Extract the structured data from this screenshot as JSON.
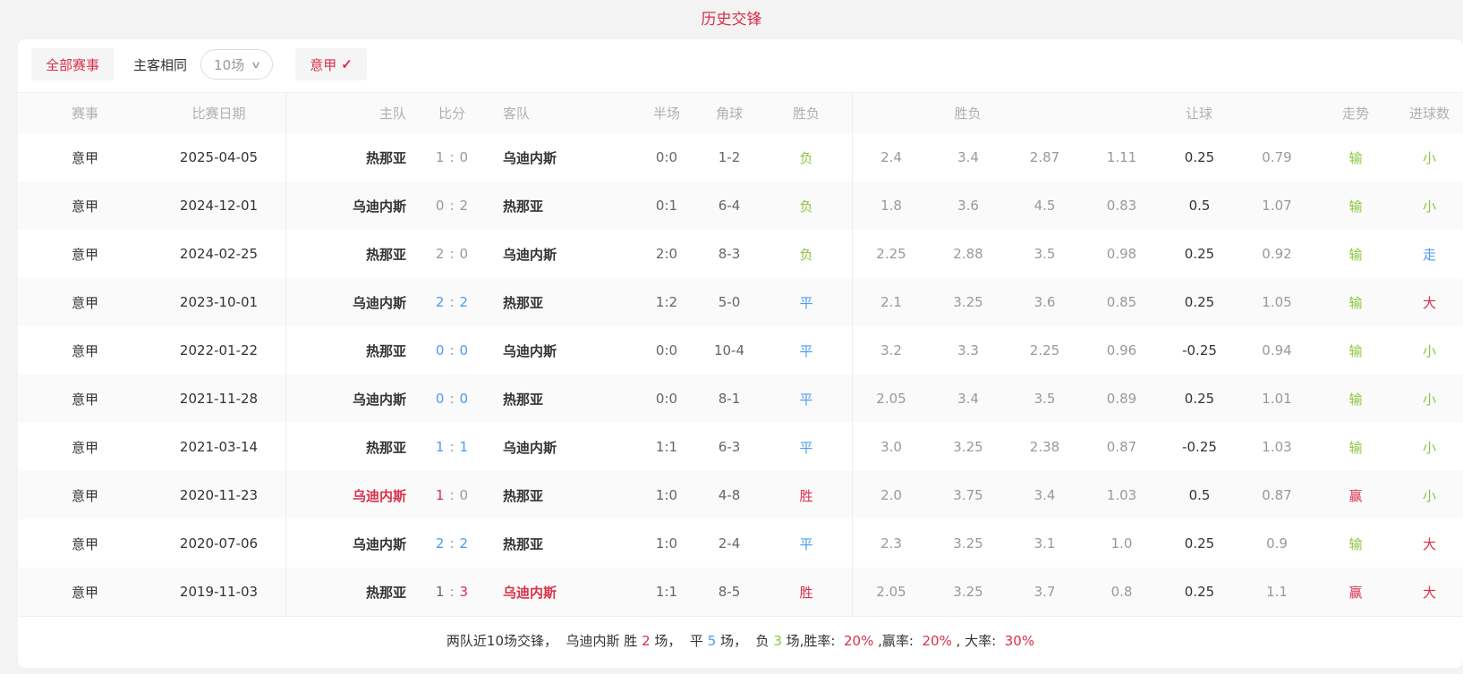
{
  "page": {
    "title": "历史交锋"
  },
  "colors": {
    "red": "#d9304c",
    "green": "#8cc63f",
    "blue": "#4a9cf2",
    "gray": "#999999",
    "dark": "#333333",
    "mid": "#666666"
  },
  "icons": {
    "chevron_down": "∨",
    "check": "✓"
  },
  "filters": {
    "all_events_label": "全部赛事",
    "home_away_label": "主客相同",
    "match_count_value": "10场",
    "league_label": "意甲"
  },
  "table": {
    "headers": {
      "league": "赛事",
      "date": "比赛日期",
      "home": "主队",
      "score": "比分",
      "away": "客队",
      "half": "半场",
      "corner": "角球",
      "result": "胜负",
      "odds_group": "胜负",
      "handicap_group": "让球",
      "trend": "走势",
      "goals": "进球数"
    },
    "score_separator": ":",
    "rows": [
      {
        "league": "意甲",
        "date": "2025-04-05",
        "home": "热那亚",
        "home_color": "dark",
        "score_home": "1",
        "score_home_color": "gray",
        "score_away": "0",
        "score_away_color": "gray",
        "away": "乌迪内斯",
        "away_color": "dark",
        "half": "0:0",
        "corner": "1-2",
        "result": "负",
        "result_color": "green",
        "odds": {
          "home": "2.4",
          "draw": "3.4",
          "away": "2.87"
        },
        "handicap": {
          "home": "1.11",
          "line": "0.25",
          "away": "0.79"
        },
        "trend": "输",
        "trend_color": "green",
        "goals": "小",
        "goals_color": "green"
      },
      {
        "league": "意甲",
        "date": "2024-12-01",
        "home": "乌迪内斯",
        "home_color": "dark",
        "score_home": "0",
        "score_home_color": "gray",
        "score_away": "2",
        "score_away_color": "gray",
        "away": "热那亚",
        "away_color": "dark",
        "half": "0:1",
        "corner": "6-4",
        "result": "负",
        "result_color": "green",
        "odds": {
          "home": "1.8",
          "draw": "3.6",
          "away": "4.5"
        },
        "handicap": {
          "home": "0.83",
          "line": "0.5",
          "away": "1.07"
        },
        "trend": "输",
        "trend_color": "green",
        "goals": "小",
        "goals_color": "green"
      },
      {
        "league": "意甲",
        "date": "2024-02-25",
        "home": "热那亚",
        "home_color": "dark",
        "score_home": "2",
        "score_home_color": "gray",
        "score_away": "0",
        "score_away_color": "gray",
        "away": "乌迪内斯",
        "away_color": "dark",
        "half": "2:0",
        "corner": "8-3",
        "result": "负",
        "result_color": "green",
        "odds": {
          "home": "2.25",
          "draw": "2.88",
          "away": "3.5"
        },
        "handicap": {
          "home": "0.98",
          "line": "0.25",
          "away": "0.92"
        },
        "trend": "输",
        "trend_color": "green",
        "goals": "走",
        "goals_color": "blue"
      },
      {
        "league": "意甲",
        "date": "2023-10-01",
        "home": "乌迪内斯",
        "home_color": "dark",
        "score_home": "2",
        "score_home_color": "blue",
        "score_away": "2",
        "score_away_color": "blue",
        "away": "热那亚",
        "away_color": "dark",
        "half": "1:2",
        "corner": "5-0",
        "result": "平",
        "result_color": "blue",
        "odds": {
          "home": "2.1",
          "draw": "3.25",
          "away": "3.6"
        },
        "handicap": {
          "home": "0.85",
          "line": "0.25",
          "away": "1.05"
        },
        "trend": "输",
        "trend_color": "green",
        "goals": "大",
        "goals_color": "red"
      },
      {
        "league": "意甲",
        "date": "2022-01-22",
        "home": "热那亚",
        "home_color": "dark",
        "score_home": "0",
        "score_home_color": "blue",
        "score_away": "0",
        "score_away_color": "blue",
        "away": "乌迪内斯",
        "away_color": "dark",
        "half": "0:0",
        "corner": "10-4",
        "result": "平",
        "result_color": "blue",
        "odds": {
          "home": "3.2",
          "draw": "3.3",
          "away": "2.25"
        },
        "handicap": {
          "home": "0.96",
          "line": "-0.25",
          "away": "0.94"
        },
        "trend": "输",
        "trend_color": "green",
        "goals": "小",
        "goals_color": "green"
      },
      {
        "league": "意甲",
        "date": "2021-11-28",
        "home": "乌迪内斯",
        "home_color": "dark",
        "score_home": "0",
        "score_home_color": "blue",
        "score_away": "0",
        "score_away_color": "blue",
        "away": "热那亚",
        "away_color": "dark",
        "half": "0:0",
        "corner": "8-1",
        "result": "平",
        "result_color": "blue",
        "odds": {
          "home": "2.05",
          "draw": "3.4",
          "away": "3.5"
        },
        "handicap": {
          "home": "0.89",
          "line": "0.25",
          "away": "1.01"
        },
        "trend": "输",
        "trend_color": "green",
        "goals": "小",
        "goals_color": "green"
      },
      {
        "league": "意甲",
        "date": "2021-03-14",
        "home": "热那亚",
        "home_color": "dark",
        "score_home": "1",
        "score_home_color": "blue",
        "score_away": "1",
        "score_away_color": "blue",
        "away": "乌迪内斯",
        "away_color": "dark",
        "half": "1:1",
        "corner": "6-3",
        "result": "平",
        "result_color": "blue",
        "odds": {
          "home": "3.0",
          "draw": "3.25",
          "away": "2.38"
        },
        "handicap": {
          "home": "0.87",
          "line": "-0.25",
          "away": "1.03"
        },
        "trend": "输",
        "trend_color": "green",
        "goals": "小",
        "goals_color": "green"
      },
      {
        "league": "意甲",
        "date": "2020-11-23",
        "home": "乌迪内斯",
        "home_color": "red",
        "score_home": "1",
        "score_home_color": "red",
        "score_away": "0",
        "score_away_color": "gray",
        "away": "热那亚",
        "away_color": "dark",
        "half": "1:0",
        "corner": "4-8",
        "result": "胜",
        "result_color": "red",
        "odds": {
          "home": "2.0",
          "draw": "3.75",
          "away": "3.4"
        },
        "handicap": {
          "home": "1.03",
          "line": "0.5",
          "away": "0.87"
        },
        "trend": "赢",
        "trend_color": "red",
        "goals": "小",
        "goals_color": "green"
      },
      {
        "league": "意甲",
        "date": "2020-07-06",
        "home": "乌迪内斯",
        "home_color": "dark",
        "score_home": "2",
        "score_home_color": "blue",
        "score_away": "2",
        "score_away_color": "blue",
        "away": "热那亚",
        "away_color": "dark",
        "half": "1:0",
        "corner": "2-4",
        "result": "平",
        "result_color": "blue",
        "odds": {
          "home": "2.3",
          "draw": "3.25",
          "away": "3.1"
        },
        "handicap": {
          "home": "1.0",
          "line": "0.25",
          "away": "0.9"
        },
        "trend": "输",
        "trend_color": "green",
        "goals": "大",
        "goals_color": "red"
      },
      {
        "league": "意甲",
        "date": "2019-11-03",
        "home": "热那亚",
        "home_color": "dark",
        "score_home": "1",
        "score_home_color": "mid",
        "score_away": "3",
        "score_away_color": "red",
        "away": "乌迪内斯",
        "away_color": "red",
        "half": "1:1",
        "corner": "8-5",
        "result": "胜",
        "result_color": "red",
        "odds": {
          "home": "2.05",
          "draw": "3.25",
          "away": "3.7"
        },
        "handicap": {
          "home": "0.8",
          "line": "0.25",
          "away": "1.1"
        },
        "trend": "赢",
        "trend_color": "red",
        "goals": "大",
        "goals_color": "red"
      }
    ]
  },
  "summary": {
    "segments": [
      {
        "text": "两队近10场交锋，  ",
        "color": "dark"
      },
      {
        "text": "乌迪内斯 胜 ",
        "color": "dark"
      },
      {
        "text": "2",
        "color": "red"
      },
      {
        "text": " 场，  平 ",
        "color": "dark"
      },
      {
        "text": "5",
        "color": "blue"
      },
      {
        "text": " 场，  负 ",
        "color": "dark"
      },
      {
        "text": "3",
        "color": "green"
      },
      {
        "text": " 场,胜率:  ",
        "color": "dark"
      },
      {
        "text": "20%",
        "color": "red"
      },
      {
        "text": " ,赢率:  ",
        "color": "dark"
      },
      {
        "text": "20%",
        "color": "red"
      },
      {
        "text": " , 大率:  ",
        "color": "dark"
      },
      {
        "text": "30%",
        "color": "red"
      }
    ]
  }
}
